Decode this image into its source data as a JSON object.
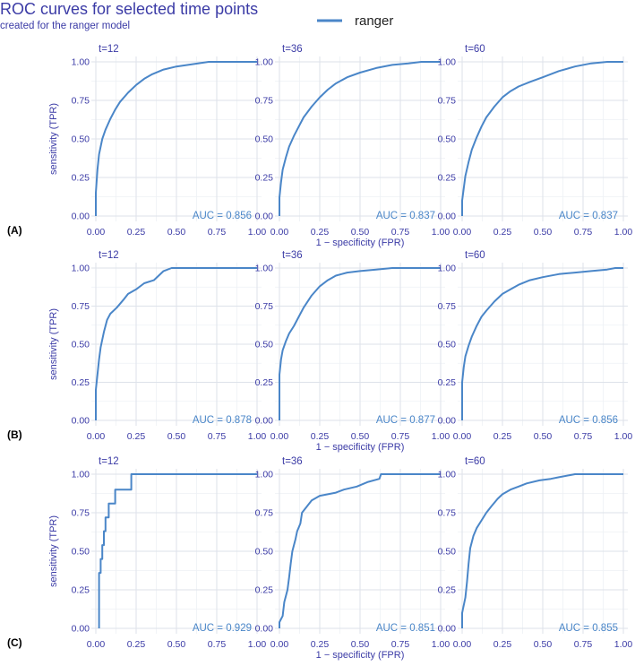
{
  "title": "ROC curves for selected time points",
  "subtitle": "created for the ranger model",
  "legend": {
    "label": "ranger",
    "color": "#4a86c8"
  },
  "colors": {
    "curve": "#4a86c8",
    "text": "#3b3ba6",
    "grid": "#dde2ea"
  },
  "chart_data": {
    "type": "line",
    "facet_layout": "3x3",
    "legend_position": "top",
    "grid": true,
    "xlabel": "1 − specificity (FPR)",
    "ylabel": "sensitivity (TPR)",
    "xlim": [
      0,
      1
    ],
    "ylim": [
      0,
      1
    ],
    "x_ticks": [
      "0.00",
      "0.25",
      "0.50",
      "0.75",
      "1.00"
    ],
    "y_ticks": [
      "0.00",
      "0.25",
      "0.50",
      "0.75",
      "1.00"
    ],
    "rows": [
      {
        "label": "(A)",
        "panels": [
          {
            "facet": "t=12",
            "auc_label": "AUC = 0.856",
            "points": [
              [
                0,
                0
              ],
              [
                0,
                0.15
              ],
              [
                0.01,
                0.3
              ],
              [
                0.02,
                0.4
              ],
              [
                0.04,
                0.5
              ],
              [
                0.06,
                0.56
              ],
              [
                0.09,
                0.63
              ],
              [
                0.12,
                0.69
              ],
              [
                0.15,
                0.74
              ],
              [
                0.2,
                0.8
              ],
              [
                0.25,
                0.85
              ],
              [
                0.3,
                0.89
              ],
              [
                0.35,
                0.92
              ],
              [
                0.42,
                0.95
              ],
              [
                0.5,
                0.97
              ],
              [
                0.6,
                0.985
              ],
              [
                0.7,
                1.0
              ],
              [
                1.0,
                1.0
              ]
            ]
          },
          {
            "facet": "t=36",
            "auc_label": "AUC = 0.837",
            "points": [
              [
                0,
                0
              ],
              [
                0,
                0.12
              ],
              [
                0.01,
                0.22
              ],
              [
                0.02,
                0.3
              ],
              [
                0.04,
                0.38
              ],
              [
                0.06,
                0.45
              ],
              [
                0.09,
                0.52
              ],
              [
                0.12,
                0.58
              ],
              [
                0.15,
                0.64
              ],
              [
                0.2,
                0.71
              ],
              [
                0.25,
                0.77
              ],
              [
                0.3,
                0.82
              ],
              [
                0.35,
                0.86
              ],
              [
                0.42,
                0.9
              ],
              [
                0.5,
                0.93
              ],
              [
                0.6,
                0.96
              ],
              [
                0.7,
                0.98
              ],
              [
                0.8,
                0.99
              ],
              [
                0.88,
                1.0
              ],
              [
                1.0,
                1.0
              ]
            ]
          },
          {
            "facet": "t=60",
            "auc_label": "AUC = 0.837",
            "points": [
              [
                0,
                0
              ],
              [
                0,
                0.1
              ],
              [
                0.01,
                0.18
              ],
              [
                0.02,
                0.26
              ],
              [
                0.04,
                0.35
              ],
              [
                0.06,
                0.43
              ],
              [
                0.09,
                0.51
              ],
              [
                0.12,
                0.58
              ],
              [
                0.15,
                0.64
              ],
              [
                0.2,
                0.71
              ],
              [
                0.25,
                0.77
              ],
              [
                0.3,
                0.81
              ],
              [
                0.35,
                0.84
              ],
              [
                0.42,
                0.87
              ],
              [
                0.5,
                0.9
              ],
              [
                0.6,
                0.94
              ],
              [
                0.7,
                0.97
              ],
              [
                0.8,
                0.99
              ],
              [
                0.9,
                1.0
              ],
              [
                1.0,
                1.0
              ]
            ]
          }
        ]
      },
      {
        "label": "(B)",
        "panels": [
          {
            "facet": "t=12",
            "auc_label": "AUC = 0.878",
            "points": [
              [
                0,
                0
              ],
              [
                0,
                0.2
              ],
              [
                0.01,
                0.3
              ],
              [
                0.02,
                0.4
              ],
              [
                0.03,
                0.48
              ],
              [
                0.05,
                0.58
              ],
              [
                0.07,
                0.66
              ],
              [
                0.09,
                0.7
              ],
              [
                0.13,
                0.74
              ],
              [
                0.17,
                0.79
              ],
              [
                0.2,
                0.83
              ],
              [
                0.25,
                0.86
              ],
              [
                0.3,
                0.9
              ],
              [
                0.36,
                0.92
              ],
              [
                0.42,
                0.98
              ],
              [
                0.47,
                1.0
              ],
              [
                1.0,
                1.0
              ]
            ]
          },
          {
            "facet": "t=36",
            "auc_label": "AUC = 0.877",
            "points": [
              [
                0,
                0
              ],
              [
                0,
                0.3
              ],
              [
                0.01,
                0.4
              ],
              [
                0.02,
                0.46
              ],
              [
                0.04,
                0.52
              ],
              [
                0.06,
                0.57
              ],
              [
                0.09,
                0.62
              ],
              [
                0.12,
                0.68
              ],
              [
                0.15,
                0.74
              ],
              [
                0.2,
                0.82
              ],
              [
                0.25,
                0.88
              ],
              [
                0.3,
                0.92
              ],
              [
                0.35,
                0.95
              ],
              [
                0.42,
                0.97
              ],
              [
                0.5,
                0.98
              ],
              [
                0.6,
                0.99
              ],
              [
                0.7,
                1.0
              ],
              [
                1.0,
                1.0
              ]
            ]
          },
          {
            "facet": "t=60",
            "auc_label": "AUC = 0.856",
            "points": [
              [
                0,
                0
              ],
              [
                0,
                0.25
              ],
              [
                0.01,
                0.35
              ],
              [
                0.02,
                0.42
              ],
              [
                0.04,
                0.49
              ],
              [
                0.06,
                0.55
              ],
              [
                0.09,
                0.62
              ],
              [
                0.12,
                0.68
              ],
              [
                0.15,
                0.72
              ],
              [
                0.2,
                0.78
              ],
              [
                0.25,
                0.83
              ],
              [
                0.3,
                0.86
              ],
              [
                0.35,
                0.89
              ],
              [
                0.42,
                0.92
              ],
              [
                0.5,
                0.94
              ],
              [
                0.6,
                0.96
              ],
              [
                0.7,
                0.97
              ],
              [
                0.8,
                0.98
              ],
              [
                0.9,
                0.99
              ],
              [
                0.95,
                1.0
              ],
              [
                1.0,
                1.0
              ]
            ]
          }
        ]
      },
      {
        "label": "(C)",
        "panels": [
          {
            "facet": "t=12",
            "auc_label": "AUC = 0.929",
            "points": [
              [
                0.02,
                0
              ],
              [
                0.02,
                0.36
              ],
              [
                0.03,
                0.36
              ],
              [
                0.03,
                0.45
              ],
              [
                0.04,
                0.45
              ],
              [
                0.04,
                0.54
              ],
              [
                0.05,
                0.54
              ],
              [
                0.05,
                0.63
              ],
              [
                0.06,
                0.63
              ],
              [
                0.06,
                0.72
              ],
              [
                0.08,
                0.72
              ],
              [
                0.08,
                0.81
              ],
              [
                0.12,
                0.81
              ],
              [
                0.12,
                0.9
              ],
              [
                0.22,
                0.9
              ],
              [
                0.22,
                1.0
              ],
              [
                1.0,
                1.0
              ]
            ]
          },
          {
            "facet": "t=36",
            "auc_label": "AUC = 0.851",
            "points": [
              [
                0,
                0
              ],
              [
                0,
                0.04
              ],
              [
                0.02,
                0.08
              ],
              [
                0.03,
                0.17
              ],
              [
                0.05,
                0.25
              ],
              [
                0.06,
                0.33
              ],
              [
                0.07,
                0.42
              ],
              [
                0.08,
                0.5
              ],
              [
                0.1,
                0.58
              ],
              [
                0.11,
                0.63
              ],
              [
                0.13,
                0.68
              ],
              [
                0.14,
                0.75
              ],
              [
                0.17,
                0.79
              ],
              [
                0.2,
                0.83
              ],
              [
                0.25,
                0.86
              ],
              [
                0.35,
                0.88
              ],
              [
                0.4,
                0.9
              ],
              [
                0.48,
                0.92
              ],
              [
                0.55,
                0.95
              ],
              [
                0.62,
                0.97
              ],
              [
                0.63,
                1.0
              ],
              [
                1.0,
                1.0
              ]
            ]
          },
          {
            "facet": "t=60",
            "auc_label": "AUC = 0.855",
            "points": [
              [
                0,
                0
              ],
              [
                0,
                0.1
              ],
              [
                0.02,
                0.2
              ],
              [
                0.03,
                0.3
              ],
              [
                0.04,
                0.42
              ],
              [
                0.05,
                0.52
              ],
              [
                0.07,
                0.6
              ],
              [
                0.09,
                0.65
              ],
              [
                0.12,
                0.7
              ],
              [
                0.15,
                0.75
              ],
              [
                0.18,
                0.79
              ],
              [
                0.22,
                0.84
              ],
              [
                0.25,
                0.87
              ],
              [
                0.3,
                0.9
              ],
              [
                0.35,
                0.92
              ],
              [
                0.4,
                0.94
              ],
              [
                0.48,
                0.96
              ],
              [
                0.55,
                0.97
              ],
              [
                0.6,
                0.98
              ],
              [
                0.7,
                1.0
              ],
              [
                1.0,
                1.0
              ]
            ]
          }
        ]
      }
    ]
  }
}
